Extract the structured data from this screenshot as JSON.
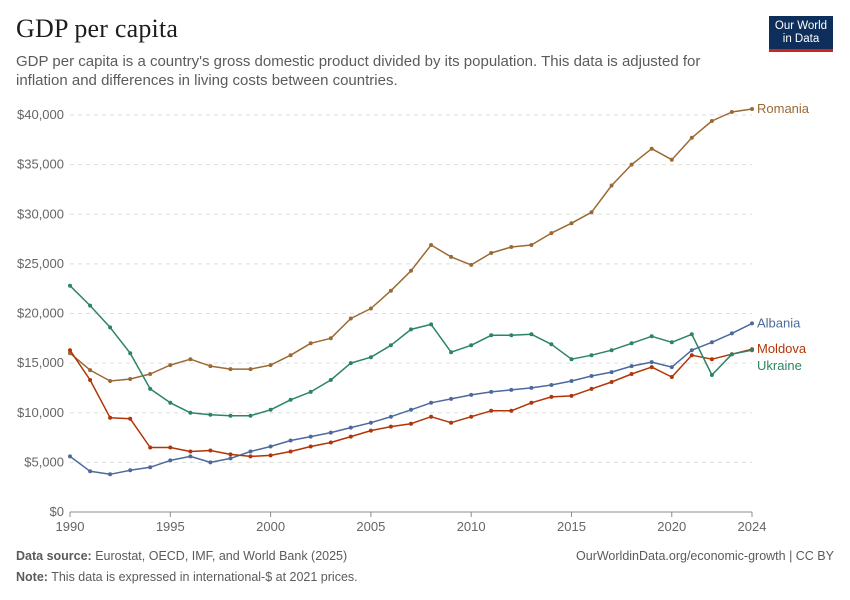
{
  "header": {
    "title": "GDP per capita",
    "subtitle": "GDP per capita is a country's gross domestic product divided by its population. This data is adjusted for inflation and differences in living costs between countries."
  },
  "logo": {
    "line1": "Our World",
    "line2": "in Data",
    "bg_color": "#0e2f5c",
    "accent_color": "#ce261e"
  },
  "footer": {
    "source_label": "Data source:",
    "source_text": "Eurostat, OECD, IMF, and World Bank (2025)",
    "note_label": "Note:",
    "note_text": "This data is expressed in international-$ at 2021 prices.",
    "credit": "OurWorldinData.org/economic-growth | CC BY"
  },
  "chart_data": {
    "type": "line",
    "title": "GDP per capita",
    "xlim": [
      1990,
      2024
    ],
    "ylim": [
      0,
      40000
    ],
    "x_ticks": [
      1990,
      1995,
      2000,
      2005,
      2010,
      2015,
      2020,
      2024
    ],
    "y_ticks": [
      0,
      5000,
      10000,
      15000,
      20000,
      25000,
      30000,
      35000,
      40000
    ],
    "y_tick_labels": [
      "$0",
      "$5,000",
      "$10,000",
      "$15,000",
      "$20,000",
      "$25,000",
      "$30,000",
      "$35,000",
      "$40,000"
    ],
    "grid": "horizontal dashed",
    "legend": "inline labels at right end of lines",
    "x": [
      1990,
      1991,
      1992,
      1993,
      1994,
      1995,
      1996,
      1997,
      1998,
      1999,
      2000,
      2001,
      2002,
      2003,
      2004,
      2005,
      2006,
      2007,
      2008,
      2009,
      2010,
      2011,
      2012,
      2013,
      2014,
      2015,
      2016,
      2017,
      2018,
      2019,
      2020,
      2021,
      2022,
      2023,
      2024
    ],
    "series": [
      {
        "name": "Romania",
        "color": "#9a6a34",
        "values": [
          16000,
          14300,
          13200,
          13400,
          13900,
          14800,
          15400,
          14700,
          14400,
          14400,
          14800,
          15800,
          17000,
          17500,
          19500,
          20500,
          22300,
          24300,
          26900,
          25700,
          24900,
          26100,
          26700,
          26900,
          28100,
          29100,
          30200,
          32900,
          35000,
          36600,
          35500,
          37700,
          39400,
          40300,
          40600
        ]
      },
      {
        "name": "Albania",
        "color": "#4c6a9c",
        "values": [
          5600,
          4100,
          3800,
          4200,
          4500,
          5200,
          5600,
          5000,
          5400,
          6100,
          6600,
          7200,
          7600,
          8000,
          8500,
          9000,
          9600,
          10300,
          11000,
          11400,
          11800,
          12100,
          12300,
          12500,
          12800,
          13200,
          13700,
          14100,
          14700,
          15100,
          14600,
          16300,
          17100,
          18000,
          19000
        ]
      },
      {
        "name": "Moldova",
        "color": "#b13507",
        "values": [
          16300,
          13300,
          9500,
          9400,
          6500,
          6500,
          6100,
          6200,
          5800,
          5600,
          5700,
          6100,
          6600,
          7000,
          7600,
          8200,
          8600,
          8900,
          9600,
          9000,
          9600,
          10200,
          10200,
          11000,
          11600,
          11700,
          12400,
          13100,
          13900,
          14600,
          13600,
          15800,
          15400,
          15900,
          16400
        ]
      },
      {
        "name": "Ukraine",
        "color": "#2c8465",
        "values": [
          22800,
          20800,
          18600,
          16000,
          12400,
          11000,
          10000,
          9800,
          9700,
          9700,
          10300,
          11300,
          12100,
          13300,
          15000,
          15600,
          16800,
          18400,
          18900,
          16100,
          16800,
          17800,
          17800,
          17900,
          16900,
          15400,
          15800,
          16300,
          17000,
          17700,
          17100,
          17900,
          13800,
          15900,
          16300
        ]
      }
    ]
  }
}
